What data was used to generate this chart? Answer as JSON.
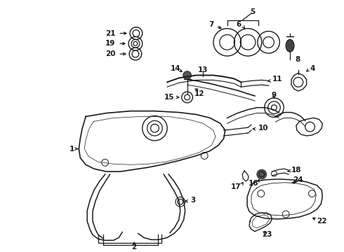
{
  "background_color": "#ffffff",
  "line_color": "#1a1a1a",
  "figsize": [
    4.9,
    3.6
  ],
  "dpi": 100,
  "label_fontsize": 7.5,
  "lw": 0.9
}
